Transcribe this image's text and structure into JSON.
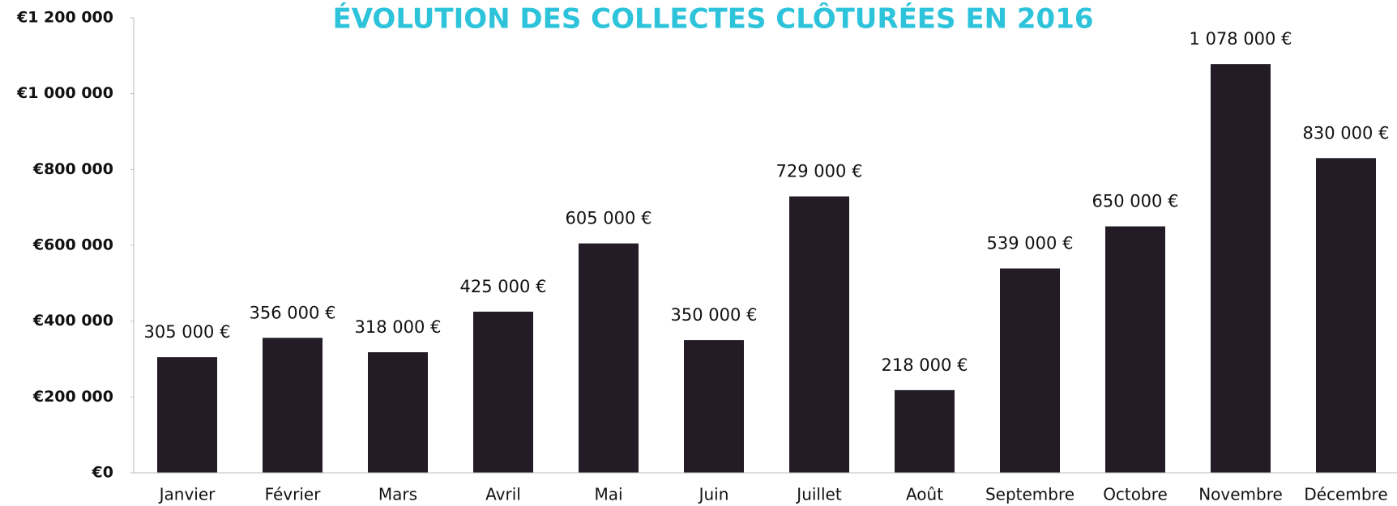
{
  "chart_data": {
    "type": "bar",
    "title": "ÉVOLUTION DES COLLECTES CLÔTURÉES EN 2016",
    "categories": [
      "Janvier",
      "Février",
      "Mars",
      "Avril",
      "Mai",
      "Juin",
      "Juillet",
      "Août",
      "Septembre",
      "Octobre",
      "Novembre",
      "Décembre"
    ],
    "values": [
      305000,
      356000,
      318000,
      425000,
      605000,
      350000,
      729000,
      218000,
      539000,
      650000,
      1078000,
      830000
    ],
    "value_labels": [
      "305 000 €",
      "356 000 €",
      "318 000 €",
      "425 000 €",
      "605 000 €",
      "350 000 €",
      "729 000 €",
      "218 000 €",
      "539 000 €",
      "650 000 €",
      "1 078 000 €",
      "830 000 €"
    ],
    "color": "#231c27",
    "ylim": [
      0,
      1200000
    ],
    "yticks": [
      {
        "value": 0,
        "label": "€0"
      },
      {
        "value": 200000,
        "label": "€200 000"
      },
      {
        "value": 400000,
        "label": "€400 000"
      },
      {
        "value": 600000,
        "label": "€600 000"
      },
      {
        "value": 800000,
        "label": "€800 000"
      },
      {
        "value": 1000000,
        "label": "€1 000 000"
      },
      {
        "value": 1200000,
        "label": "€1 200 000"
      }
    ],
    "grid": false
  }
}
